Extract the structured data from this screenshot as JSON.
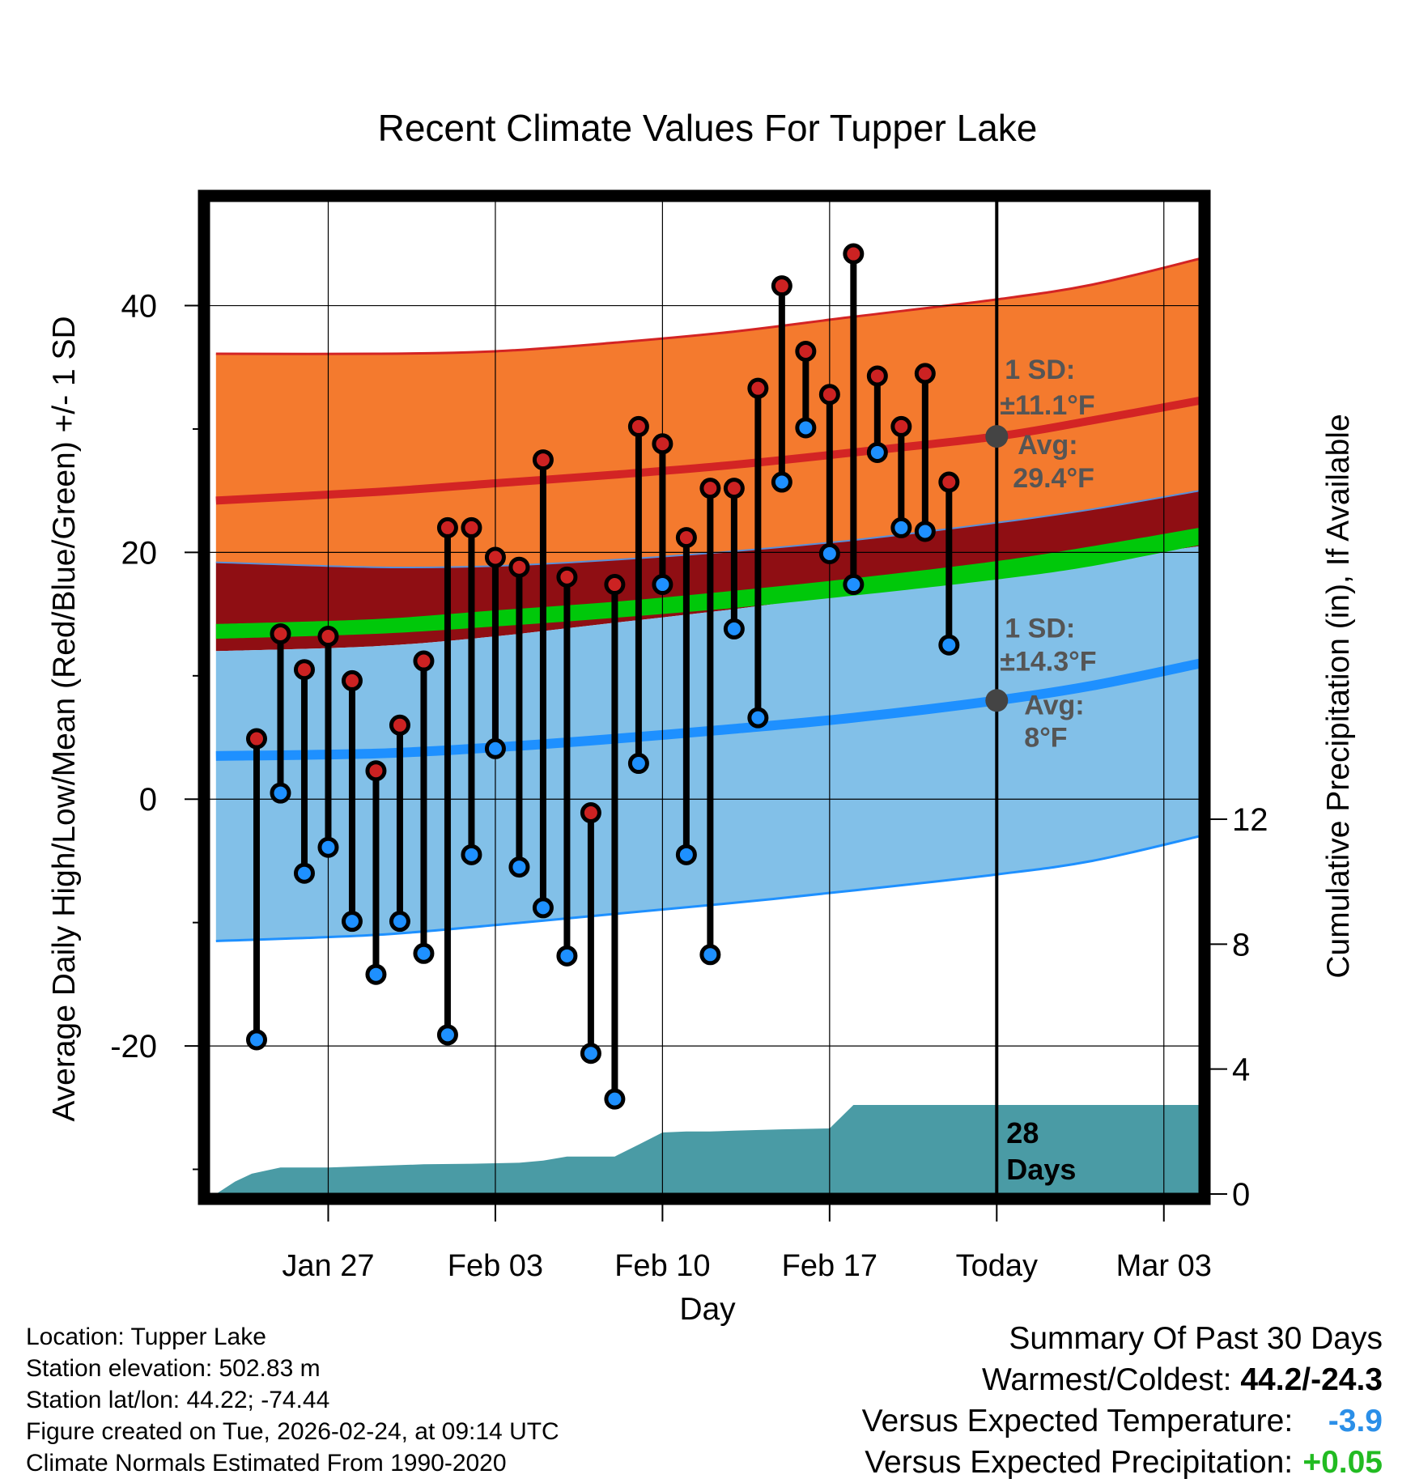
{
  "chart_data": {
    "type": "line",
    "title": "Recent Climate Values For Tupper Lake",
    "xlabel": "Day",
    "ylabel": "Average Daily High/Low/Mean (Red/Blue/Green) +/- 1 SD",
    "y2label": "Cumulative Precipitation (in), If Available",
    "xlim": [
      -2.0,
      39.5
    ],
    "ylim": [
      -32,
      48.5
    ],
    "y2lim": [
      0,
      31.8
    ],
    "xticks": [
      {
        "x": 3,
        "label": "Jan 27"
      },
      {
        "x": 10,
        "label": "Feb 03"
      },
      {
        "x": 17,
        "label": "Feb 10"
      },
      {
        "x": 24,
        "label": "Feb 17"
      },
      {
        "x": 31,
        "label": "Today"
      },
      {
        "x": 38,
        "label": "Mar 03"
      }
    ],
    "yticks": [
      -20,
      0,
      20,
      40
    ],
    "y2ticks": [
      0,
      4,
      8,
      12
    ],
    "today_x": 31,
    "normals": {
      "x": [
        -1.7,
        5,
        10,
        15,
        20,
        25,
        31,
        35,
        39.5
      ],
      "high_mean": [
        24.2,
        24.9,
        25.6,
        26.3,
        27.1,
        28.1,
        29.4,
        30.7,
        32.3
      ],
      "high_upper": [
        36.1,
        36.1,
        36.3,
        37.0,
        37.9,
        39.1,
        40.5,
        41.7,
        43.8
      ],
      "high_lower": [
        19.2,
        18.8,
        18.9,
        19.4,
        20.1,
        21.0,
        22.4,
        23.5,
        25.0
      ],
      "mean_upper": [
        14.2,
        14.6,
        15.3,
        16.0,
        16.9,
        17.9,
        19.3,
        20.5,
        22.0
      ],
      "mean_lower": [
        13.0,
        13.4,
        14.0,
        14.7,
        15.5,
        16.5,
        17.8,
        18.9,
        20.6
      ],
      "low_mean": [
        3.5,
        3.7,
        4.2,
        4.9,
        5.7,
        6.6,
        8.0,
        9.2,
        11.0
      ],
      "low_upper": [
        12.0,
        12.4,
        13.2,
        14.3,
        15.4,
        16.7,
        18.2,
        19.3,
        20.5
      ],
      "low_lower": [
        -11.5,
        -11.0,
        -10.2,
        -9.3,
        -8.4,
        -7.4,
        -6.1,
        -5.0,
        -3.0
      ]
    },
    "series": [
      {
        "name": "Daily High",
        "color": "#cc2222",
        "x": [
          0,
          1,
          2,
          3,
          4,
          5,
          6,
          7,
          8,
          9,
          10,
          11,
          12,
          13,
          14,
          15,
          16,
          17,
          18,
          19,
          20,
          21,
          22,
          23,
          24,
          25,
          26,
          27,
          28,
          29,
          30
        ],
        "values": [
          4.9,
          13.4,
          10.5,
          13.2,
          9.6,
          2.3,
          6.0,
          11.2,
          22.0,
          22.0,
          19.6,
          18.8,
          27.5,
          18.0,
          -1.1,
          17.4,
          30.2,
          28.8,
          21.2,
          25.2,
          25.2,
          33.3,
          41.6,
          36.3,
          32.8,
          44.2,
          34.3,
          30.2,
          34.5,
          25.7,
          null
        ],
        "source": "estimated"
      },
      {
        "name": "Daily Low",
        "color": "#1e90ff",
        "x": [
          0,
          1,
          2,
          3,
          4,
          5,
          6,
          7,
          8,
          9,
          10,
          11,
          12,
          13,
          14,
          15,
          16,
          17,
          18,
          19,
          20,
          21,
          22,
          23,
          24,
          25,
          26,
          27,
          28,
          29,
          30
        ],
        "values": [
          -19.5,
          0.5,
          -6.0,
          -3.9,
          -9.9,
          -14.2,
          -9.9,
          -12.5,
          -19.1,
          -4.5,
          4.1,
          -5.5,
          -8.8,
          -12.7,
          -20.6,
          -24.3,
          2.9,
          17.4,
          -4.5,
          -12.6,
          13.8,
          6.6,
          25.7,
          30.1,
          19.9,
          17.4,
          28.1,
          22.0,
          21.7,
          12.5,
          null
        ],
        "source": "estimated"
      },
      {
        "name": "Cumulative Precipitation",
        "color": "#4a9ba5",
        "x": [
          -1.7,
          -0.9,
          -0.2,
          1,
          2,
          3,
          5,
          7,
          9,
          11,
          12,
          13,
          14,
          15,
          16,
          17,
          18,
          19,
          20,
          22,
          24,
          25,
          26,
          27,
          31,
          39.5
        ],
        "values": [
          0.0,
          0.4,
          0.65,
          0.85,
          0.85,
          0.85,
          0.9,
          0.95,
          0.97,
          1.0,
          1.07,
          1.2,
          1.2,
          1.2,
          1.58,
          1.97,
          2.0,
          2.0,
          2.03,
          2.07,
          2.1,
          2.85,
          2.85,
          2.85,
          2.85,
          2.85
        ],
        "source": "estimated"
      }
    ],
    "annotations": {
      "high_sd_label": "1 SD:",
      "high_sd_value": "±11.1°F",
      "high_avg_label": "Avg:",
      "high_avg_value": "29.4°F",
      "low_sd_label": "1 SD:",
      "low_sd_value": "±14.3°F",
      "low_avg_label": "Avg:",
      "low_avg_value": "8°F",
      "days_line1": "28",
      "days_line2": "Days"
    },
    "colors": {
      "high_band": "#f47a2e",
      "high_line": "#d32424",
      "overlap_band": "#8f0e13",
      "mean_band": "#00c80a",
      "low_band": "#82c0e8",
      "low_line": "#1e90ff",
      "precip": "#4a9ba5",
      "annotation": "#555555"
    }
  },
  "metadata_text": {
    "location": "Location: Tupper Lake",
    "elevation": "Station elevation: 502.83 m",
    "latlon": "Station lat/lon: 44.22; -74.44",
    "created": "Figure created on Tue, 2026-02-24, at 09:14 UTC",
    "normals": "Climate Normals Estimated From 1990-2020"
  },
  "summary": {
    "title": "Summary Of Past 30 Days",
    "warm_cold_label": "Warmest/Coldest:",
    "warm_cold_value": "44.2/-24.3",
    "temp_label": "Versus Expected Temperature:",
    "temp_value": "-3.9",
    "temp_color": "#2b8fe8",
    "precip_label": "Versus Expected Precipitation:",
    "precip_value": "+0.05",
    "precip_color": "#22bb22"
  }
}
